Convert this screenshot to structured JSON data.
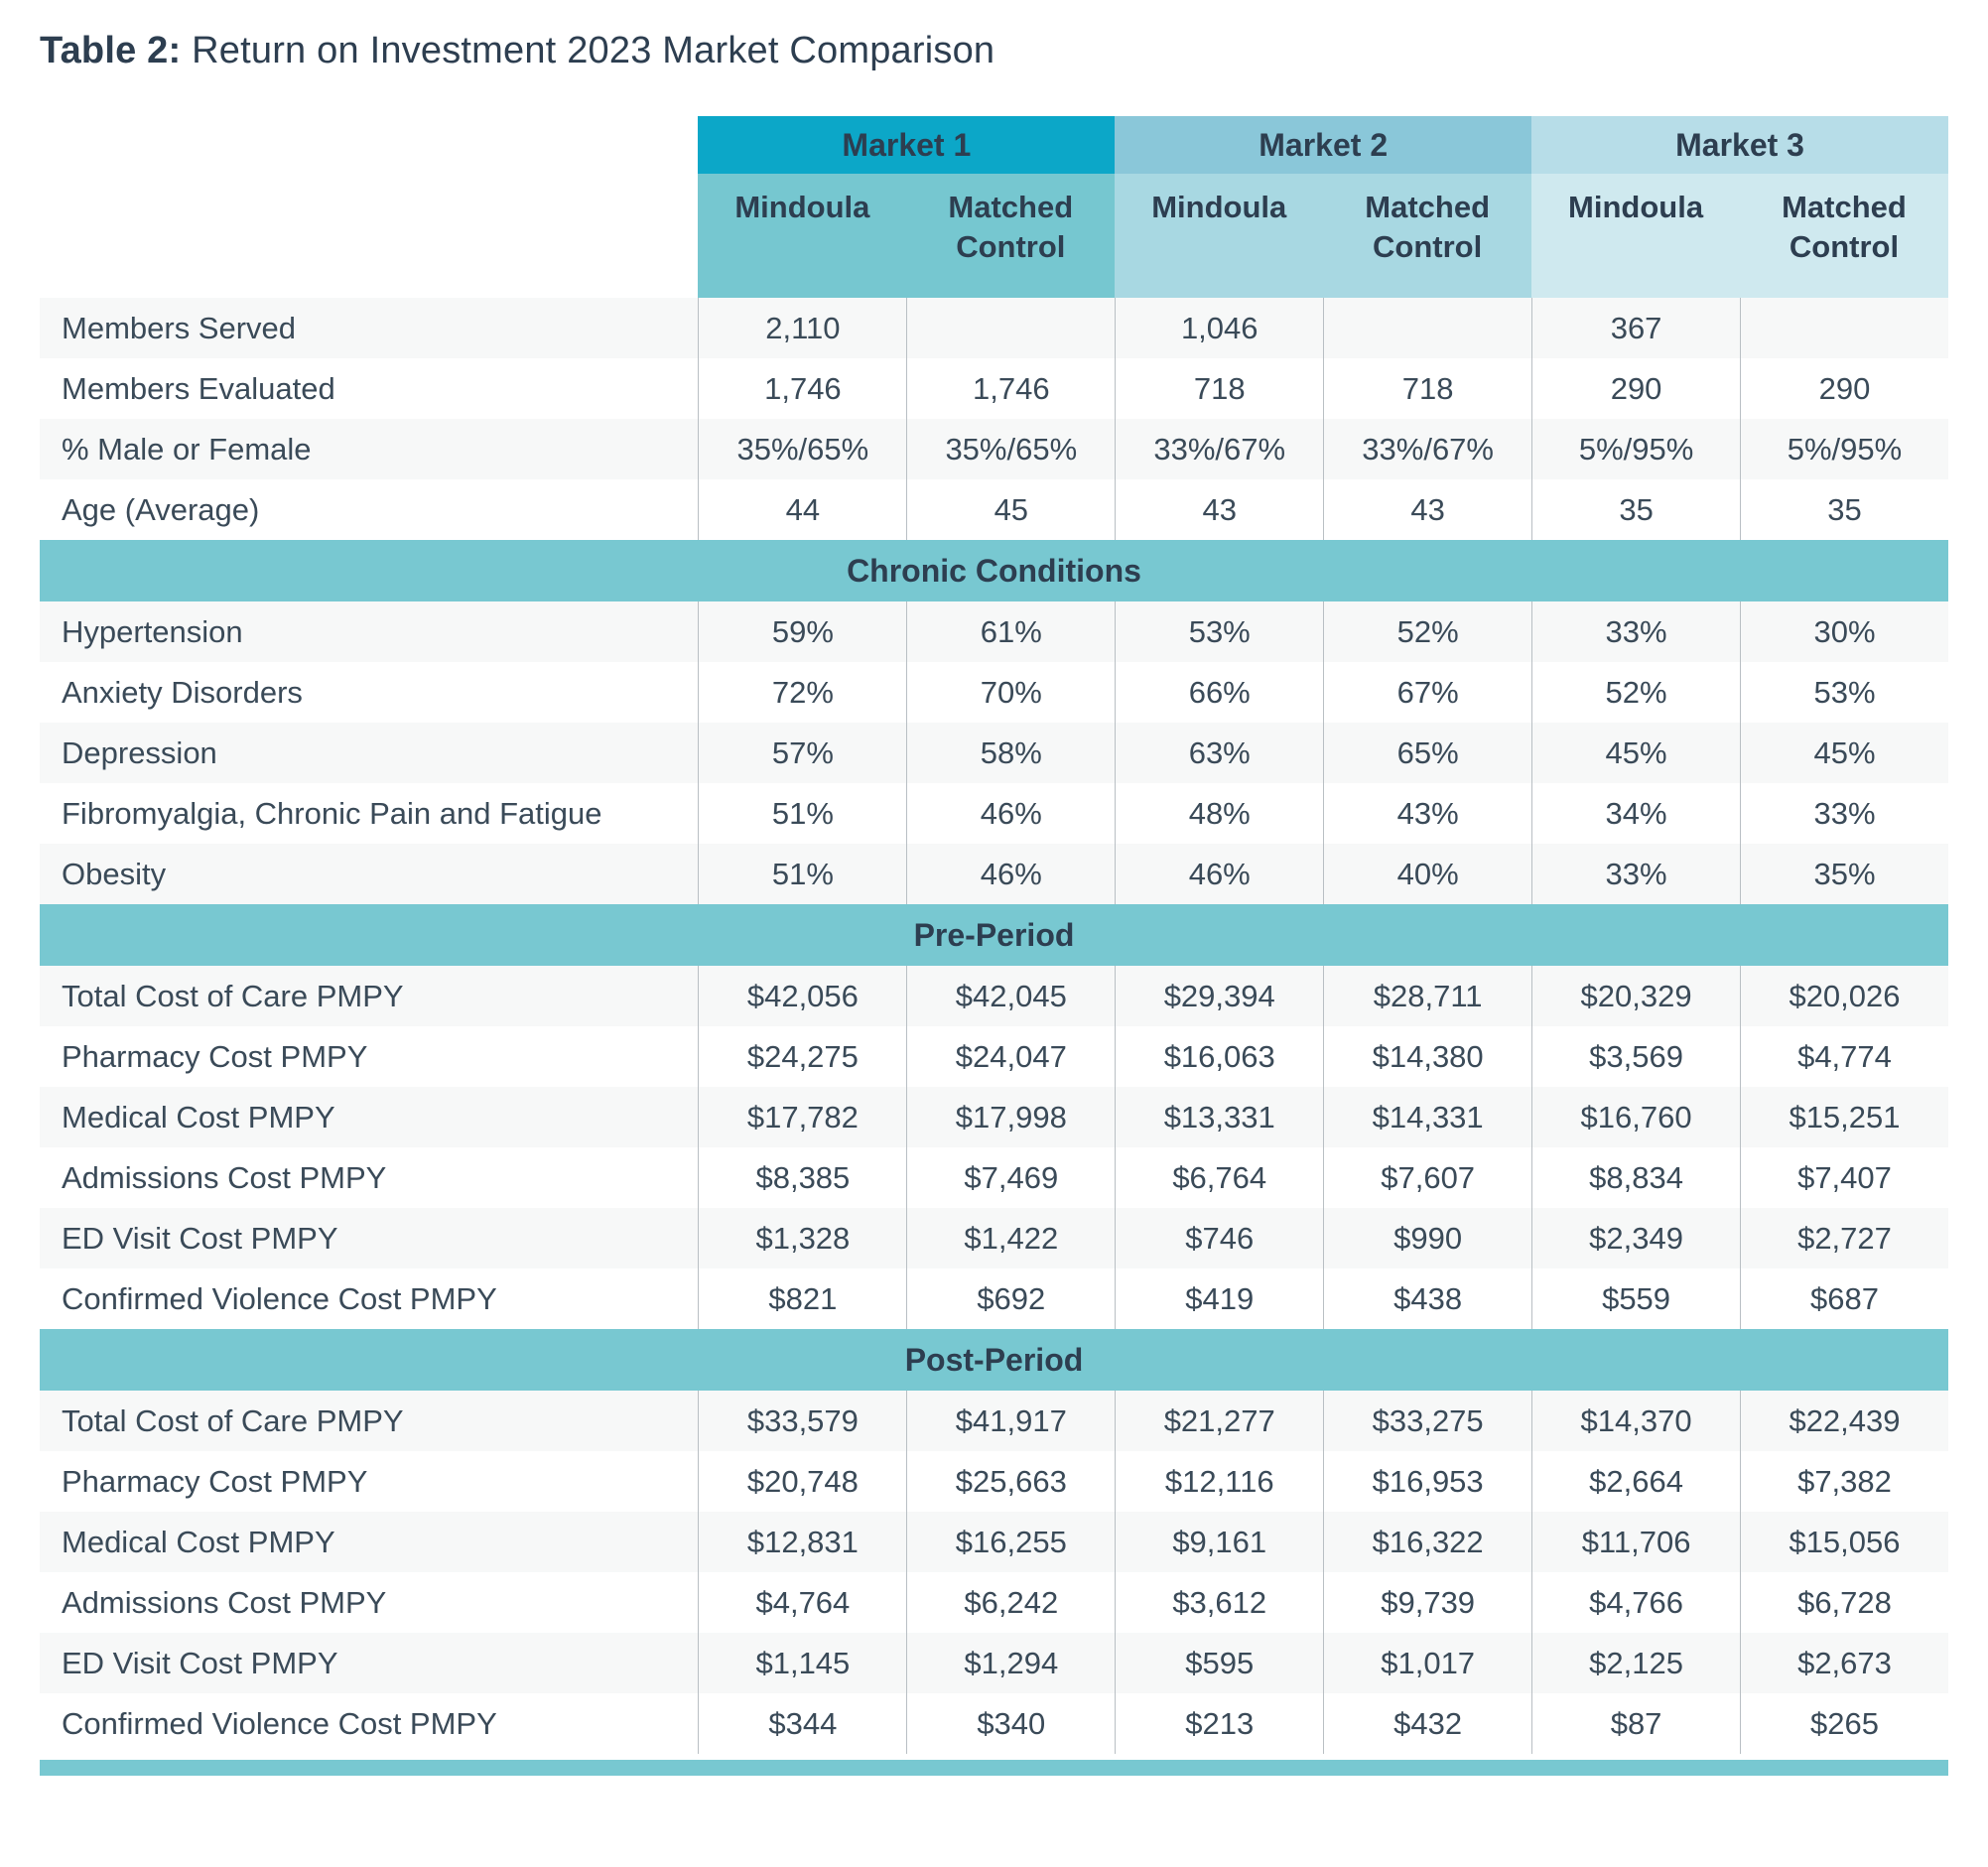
{
  "title": {
    "prefix": "Table 2:",
    "rest": " Return on Investment 2023 Market Comparison"
  },
  "colors": {
    "market1_header": "#0ca7c8",
    "market2_header": "#8ac7d9",
    "market3_header": "#b7dde8",
    "market1_subheader": "#76c7d0",
    "market2_subheader": "#a8d8e2",
    "market3_subheader": "#cfe9ef",
    "section_banner": "#78c8d1",
    "row_stripe": "#f7f8f8",
    "text_dark": "#2d3e50"
  },
  "table": {
    "markets": [
      "Market 1",
      "Market 2",
      "Market 3"
    ],
    "sub_headers": [
      "Mindoula",
      "Matched Control",
      "Mindoula",
      "Matched Control",
      "Mindoula",
      "Matched Control"
    ],
    "sections": [
      {
        "rows": [
          {
            "label": "Members Served",
            "values": [
              "2,110",
              "",
              "1,046",
              "",
              "367",
              ""
            ]
          },
          {
            "label": "Members Evaluated",
            "values": [
              "1,746",
              "1,746",
              "718",
              "718",
              "290",
              "290"
            ]
          },
          {
            "label": "% Male or Female",
            "values": [
              "35%/65%",
              "35%/65%",
              "33%/67%",
              "33%/67%",
              "5%/95%",
              "5%/95%"
            ]
          },
          {
            "label": "Age (Average)",
            "values": [
              "44",
              "45",
              "43",
              "43",
              "35",
              "35"
            ]
          }
        ]
      },
      {
        "banner": "Chronic Conditions"
      },
      {
        "rows": [
          {
            "label": "Hypertension",
            "values": [
              "59%",
              "61%",
              "53%",
              "52%",
              "33%",
              "30%"
            ]
          },
          {
            "label": "Anxiety Disorders",
            "values": [
              "72%",
              "70%",
              "66%",
              "67%",
              "52%",
              "53%"
            ]
          },
          {
            "label": "Depression",
            "values": [
              "57%",
              "58%",
              "63%",
              "65%",
              "45%",
              "45%"
            ]
          },
          {
            "label": "Fibromyalgia, Chronic Pain and Fatigue",
            "values": [
              "51%",
              "46%",
              "48%",
              "43%",
              "34%",
              "33%"
            ]
          },
          {
            "label": "Obesity",
            "values": [
              "51%",
              "46%",
              "46%",
              "40%",
              "33%",
              "35%"
            ]
          }
        ]
      },
      {
        "banner": "Pre-Period"
      },
      {
        "rows": [
          {
            "label": "Total Cost of Care PMPY",
            "values": [
              "$42,056",
              "$42,045",
              "$29,394",
              "$28,711",
              "$20,329",
              "$20,026"
            ]
          },
          {
            "label": "Pharmacy Cost PMPY",
            "values": [
              "$24,275",
              "$24,047",
              "$16,063",
              "$14,380",
              "$3,569",
              "$4,774"
            ]
          },
          {
            "label": "Medical Cost PMPY",
            "values": [
              "$17,782",
              "$17,998",
              "$13,331",
              "$14,331",
              "$16,760",
              "$15,251"
            ]
          },
          {
            "label": "Admissions Cost PMPY",
            "values": [
              "$8,385",
              "$7,469",
              "$6,764",
              "$7,607",
              "$8,834",
              "$7,407"
            ]
          },
          {
            "label": "ED Visit Cost PMPY",
            "values": [
              "$1,328",
              "$1,422",
              "$746",
              "$990",
              "$2,349",
              "$2,727"
            ]
          },
          {
            "label": "Confirmed Violence Cost PMPY",
            "values": [
              "$821",
              "$692",
              "$419",
              "$438",
              "$559",
              "$687"
            ]
          }
        ]
      },
      {
        "banner": "Post-Period"
      },
      {
        "rows": [
          {
            "label": "Total Cost of Care PMPY",
            "values": [
              "$33,579",
              "$41,917",
              "$21,277",
              "$33,275",
              "$14,370",
              "$22,439"
            ]
          },
          {
            "label": "Pharmacy Cost PMPY",
            "values": [
              "$20,748",
              "$25,663",
              "$12,116",
              "$16,953",
              "$2,664",
              "$7,382"
            ]
          },
          {
            "label": "Medical Cost PMPY",
            "values": [
              "$12,831",
              "$16,255",
              "$9,161",
              "$16,322",
              "$11,706",
              "$15,056"
            ]
          },
          {
            "label": "Admissions Cost PMPY",
            "values": [
              "$4,764",
              "$6,242",
              "$3,612",
              "$9,739",
              "$4,766",
              "$6,728"
            ]
          },
          {
            "label": "ED Visit Cost PMPY",
            "values": [
              "$1,145",
              "$1,294",
              "$595",
              "$1,017",
              "$2,125",
              "$2,673"
            ]
          },
          {
            "label": "Confirmed Violence Cost PMPY",
            "values": [
              "$344",
              "$340",
              "$213",
              "$432",
              "$87",
              "$265"
            ]
          }
        ]
      }
    ]
  }
}
